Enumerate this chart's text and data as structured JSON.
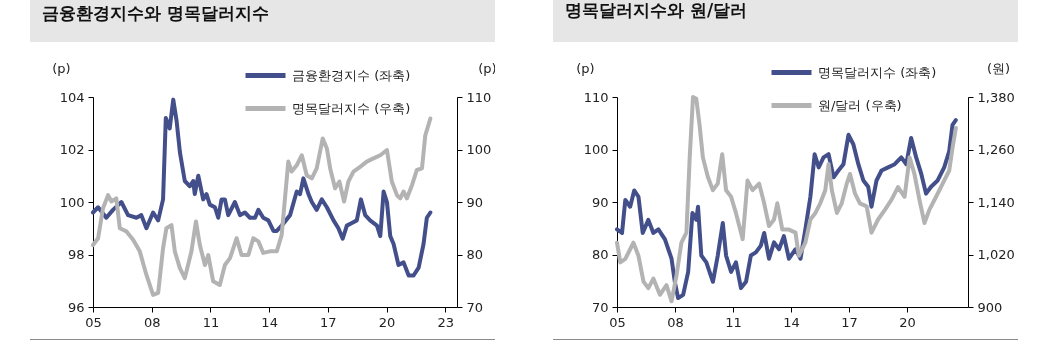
{
  "chart_data": [
    {
      "type": "line",
      "title": "금융환경지수와 명목달러지수",
      "ylabel": "(p)",
      "y2label": "(p)",
      "xlim": [
        2005,
        2023.6
      ],
      "xticks": [
        {
          "value": 2005,
          "label": "05"
        },
        {
          "value": 2008,
          "label": "08"
        },
        {
          "value": 2011,
          "label": "11"
        },
        {
          "value": 2014,
          "label": "14"
        },
        {
          "value": 2017,
          "label": "17"
        },
        {
          "value": 2020,
          "label": "20"
        },
        {
          "value": 2023,
          "label": "23"
        }
      ],
      "ylim": [
        96,
        104
      ],
      "yticks": [
        96,
        98,
        100,
        102,
        104
      ],
      "y2lim": [
        70,
        110
      ],
      "y2ticks": [
        70,
        80,
        90,
        100,
        110
      ],
      "legend": "top right",
      "series": [
        {
          "name": "금융환경지수 (좌축)",
          "color": "#434f8a",
          "x": [
            2005.0,
            2005.26,
            2005.68,
            2006.02,
            2006.45,
            2006.79,
            2007.22,
            2007.47,
            2007.73,
            2008.07,
            2008.33,
            2008.58,
            2008.72,
            2008.92,
            2009.1,
            2009.27,
            2009.44,
            2009.69,
            2009.95,
            2010.12,
            2010.2,
            2010.38,
            2010.63,
            2010.8,
            2010.97,
            2011.23,
            2011.4,
            2011.57,
            2011.74,
            2011.91,
            2012.25,
            2012.51,
            2012.76,
            2013.02,
            2013.28,
            2013.45,
            2013.7,
            2013.96,
            2014.22,
            2014.39,
            2014.64,
            2015.07,
            2015.41,
            2015.58,
            2015.75,
            2016.01,
            2016.18,
            2016.43,
            2016.69,
            2016.95,
            2017.29,
            2017.54,
            2017.76,
            2017.97,
            2018.23,
            2018.48,
            2018.69,
            2018.91,
            2019.16,
            2019.51,
            2019.68,
            2019.85,
            2020.02,
            2020.19,
            2020.36,
            2020.61,
            2020.87,
            2021.13,
            2021.38,
            2021.64,
            2021.89,
            2022.06,
            2022.24
          ],
          "values": [
            99.6,
            99.8,
            99.4,
            99.7,
            100.0,
            99.5,
            99.4,
            99.5,
            99.0,
            99.6,
            99.3,
            100.1,
            103.2,
            102.8,
            103.9,
            103.1,
            101.9,
            100.8,
            100.6,
            100.8,
            100.3,
            101.0,
            100.1,
            100.3,
            99.9,
            99.8,
            99.4,
            100.1,
            100.1,
            99.5,
            100.0,
            99.5,
            99.6,
            99.4,
            99.4,
            99.7,
            99.4,
            99.3,
            98.9,
            98.9,
            99.1,
            99.5,
            100.4,
            100.3,
            100.9,
            100.3,
            100.0,
            99.7,
            100.1,
            99.8,
            99.3,
            99.0,
            98.6,
            99.1,
            99.2,
            99.3,
            100.1,
            99.5,
            99.3,
            99.1,
            98.7,
            100.4,
            100.0,
            98.7,
            98.4,
            97.6,
            97.7,
            97.2,
            97.2,
            97.5,
            98.4,
            99.4,
            99.6
          ]
        },
        {
          "name": "명목달러지수 (우축)",
          "color": "#b3b3b3",
          "axis": "y2",
          "x": [
            2005.0,
            2005.26,
            2005.51,
            2005.77,
            2005.94,
            2006.19,
            2006.37,
            2006.71,
            2007.05,
            2007.39,
            2007.73,
            2008.07,
            2008.33,
            2008.58,
            2008.75,
            2009.01,
            2009.18,
            2009.44,
            2009.69,
            2010.03,
            2010.26,
            2010.46,
            2010.72,
            2010.89,
            2011.14,
            2011.48,
            2011.74,
            2012.0,
            2012.34,
            2012.59,
            2012.94,
            2013.19,
            2013.45,
            2013.7,
            2014.04,
            2014.39,
            2014.64,
            2014.98,
            2015.15,
            2015.41,
            2015.67,
            2015.92,
            2016.18,
            2016.43,
            2016.74,
            2016.95,
            2017.12,
            2017.37,
            2017.59,
            2017.83,
            2018.05,
            2018.31,
            2018.65,
            2018.99,
            2019.33,
            2019.68,
            2020.02,
            2020.27,
            2020.53,
            2020.7,
            2020.87,
            2021.04,
            2021.3,
            2021.55,
            2021.81,
            2021.98,
            2022.24
          ],
          "values": [
            81.8,
            83.1,
            88.8,
            91.3,
            90.1,
            90.7,
            85.0,
            84.4,
            82.8,
            80.6,
            76.1,
            72.3,
            72.7,
            81.2,
            85.0,
            85.6,
            80.6,
            77.4,
            75.5,
            80.6,
            86.3,
            81.8,
            78.0,
            79.9,
            74.9,
            74.2,
            78.0,
            79.3,
            83.1,
            79.9,
            79.9,
            83.1,
            82.5,
            80.3,
            80.6,
            80.6,
            83.7,
            97.7,
            95.8,
            97.0,
            98.9,
            95.1,
            94.5,
            96.4,
            102.1,
            100.2,
            96.4,
            92.6,
            93.9,
            90.1,
            93.9,
            95.8,
            96.7,
            97.7,
            98.3,
            98.9,
            99.9,
            93.9,
            91.3,
            90.7,
            92.0,
            90.7,
            93.2,
            96.1,
            96.4,
            102.7,
            105.9
          ]
        }
      ]
    },
    {
      "type": "line",
      "title": "명목달러지수와 원/달러",
      "ylabel": "(p)",
      "y2label": "(원)",
      "xlim": [
        2005,
        2023.15
      ],
      "xticks": [
        {
          "value": 2005,
          "label": "05"
        },
        {
          "value": 2008,
          "label": "08"
        },
        {
          "value": 2011,
          "label": "11"
        },
        {
          "value": 2014,
          "label": "14"
        },
        {
          "value": 2017,
          "label": "17"
        },
        {
          "value": 2020,
          "label": "20"
        }
      ],
      "ylim": [
        70,
        110
      ],
      "yticks": [
        70,
        80,
        90,
        100,
        110
      ],
      "y2lim": [
        900,
        1380
      ],
      "y2ticks": [
        {
          "value": 900,
          "label": "900"
        },
        {
          "value": 1020,
          "label": "1,020"
        },
        {
          "value": 1140,
          "label": "1,140"
        },
        {
          "value": 1260,
          "label": "1,260"
        },
        {
          "value": 1380,
          "label": "1,380"
        }
      ],
      "legend": "top right",
      "series": [
        {
          "name": "명목달러지수 (좌축)",
          "color": "#434f8a",
          "x": [
            2005.0,
            2005.26,
            2005.43,
            2005.68,
            2005.89,
            2006.11,
            2006.33,
            2006.62,
            2006.88,
            2007.14,
            2007.48,
            2007.82,
            2007.99,
            2008.16,
            2008.42,
            2008.68,
            2008.9,
            2009.1,
            2009.19,
            2009.36,
            2009.62,
            2009.96,
            2010.21,
            2010.47,
            2010.64,
            2010.9,
            2011.15,
            2011.41,
            2011.67,
            2011.92,
            2012.18,
            2012.44,
            2012.61,
            2012.86,
            2013.12,
            2013.38,
            2013.63,
            2013.89,
            2014.23,
            2014.49,
            2014.74,
            2015.0,
            2015.22,
            2015.43,
            2015.68,
            2015.94,
            2016.2,
            2016.45,
            2016.71,
            2016.97,
            2017.22,
            2017.48,
            2017.74,
            2017.99,
            2018.16,
            2018.42,
            2018.68,
            2019.02,
            2019.36,
            2019.7,
            2019.96,
            2020.21,
            2020.47,
            2020.73,
            2020.98,
            2021.24,
            2021.58,
            2021.92,
            2022.18,
            2022.35,
            2022.52
          ],
          "values": [
            84.8,
            84.1,
            90.4,
            89.1,
            92.2,
            91.0,
            84.1,
            86.6,
            84.1,
            84.8,
            82.9,
            79.2,
            74.8,
            71.7,
            72.3,
            76.7,
            87.9,
            86.6,
            89.1,
            79.8,
            78.5,
            74.8,
            79.8,
            86.0,
            79.8,
            76.7,
            78.5,
            73.6,
            74.8,
            79.8,
            80.4,
            81.7,
            84.1,
            79.2,
            82.3,
            81.0,
            83.5,
            79.2,
            81.0,
            79.2,
            84.8,
            91.0,
            99.1,
            96.6,
            98.5,
            99.1,
            94.7,
            96.0,
            97.2,
            102.8,
            101.0,
            97.2,
            94.1,
            92.9,
            89.1,
            94.1,
            96.0,
            96.6,
            97.2,
            98.5,
            97.2,
            102.2,
            98.5,
            95.4,
            91.6,
            92.9,
            94.1,
            96.6,
            99.7,
            104.7,
            105.6
          ]
        },
        {
          "name": "원/달러 (우축)",
          "color": "#b3b3b3",
          "axis": "y2",
          "x": [
            2005.0,
            2005.17,
            2005.43,
            2005.68,
            2005.85,
            2006.11,
            2006.37,
            2006.62,
            2006.88,
            2007.22,
            2007.56,
            2007.82,
            2008.08,
            2008.33,
            2008.59,
            2008.76,
            2008.93,
            2009.1,
            2009.27,
            2009.44,
            2009.7,
            2009.96,
            2010.21,
            2010.44,
            2010.64,
            2010.9,
            2011.15,
            2011.5,
            2011.75,
            2012.01,
            2012.35,
            2012.61,
            2012.86,
            2013.12,
            2013.29,
            2013.55,
            2013.89,
            2014.23,
            2014.4,
            2014.74,
            2015.0,
            2015.26,
            2015.51,
            2015.77,
            2015.94,
            2016.11,
            2016.37,
            2016.62,
            2016.88,
            2017.05,
            2017.31,
            2017.56,
            2017.91,
            2018.16,
            2018.5,
            2018.85,
            2019.19,
            2019.53,
            2019.87,
            2020.13,
            2020.38,
            2020.64,
            2020.9,
            2021.15,
            2021.5,
            2021.84,
            2022.18,
            2022.35,
            2022.52
          ],
          "values": [
            1047,
            1002,
            1010,
            1032,
            1047,
            1017,
            958,
            943,
            965,
            928,
            950,
            913,
            973,
            1047,
            1070,
            1242,
            1380,
            1376,
            1316,
            1242,
            1197,
            1167,
            1182,
            1249,
            1167,
            1152,
            1115,
            1055,
            1189,
            1167,
            1182,
            1137,
            1085,
            1100,
            1137,
            1077,
            1077,
            1070,
            1017,
            1047,
            1100,
            1115,
            1137,
            1167,
            1227,
            1167,
            1115,
            1137,
            1182,
            1204,
            1159,
            1137,
            1130,
            1070,
            1100,
            1122,
            1145,
            1174,
            1152,
            1242,
            1204,
            1145,
            1092,
            1122,
            1152,
            1182,
            1212,
            1264,
            1309
          ]
        }
      ]
    }
  ]
}
